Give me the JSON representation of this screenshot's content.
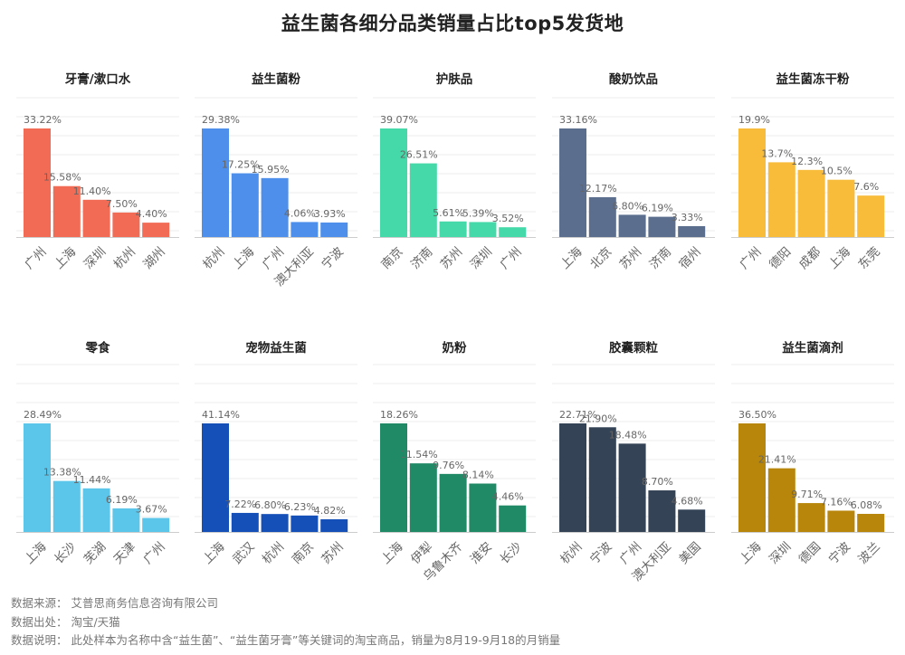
{
  "title": "益生菌各细分品类销量占比top5发货地",
  "chart_data": [
    {
      "type": "bar",
      "title": "牙膏/漱口水",
      "categories": [
        "广州",
        "上海",
        "深圳",
        "杭州",
        "湖州"
      ],
      "values": [
        33.22,
        15.58,
        11.4,
        7.5,
        4.4
      ],
      "labels": [
        "33.22%",
        "15.58%",
        "11.40%",
        "7.50%",
        "4.40%"
      ],
      "color": "#F26B55",
      "grid": true
    },
    {
      "type": "bar",
      "title": "益生菌粉",
      "categories": [
        "杭州",
        "上海",
        "广州",
        "澳大利亚",
        "宁波"
      ],
      "values": [
        29.38,
        17.25,
        15.95,
        4.06,
        3.93
      ],
      "labels": [
        "29.38%",
        "17.25%",
        "15.95%",
        "4.06%",
        "3.93%"
      ],
      "color": "#4D8FEB",
      "grid": true
    },
    {
      "type": "bar",
      "title": "护肤品",
      "categories": [
        "南京",
        "济南",
        "苏州",
        "深圳",
        "广州"
      ],
      "values": [
        39.07,
        26.51,
        5.61,
        5.39,
        3.52
      ],
      "labels": [
        "39.07%",
        "26.51%",
        "5.61%",
        "5.39%",
        "3.52%"
      ],
      "color": "#45D8A8",
      "grid": true
    },
    {
      "type": "bar",
      "title": "酸奶饮品",
      "categories": [
        "上海",
        "北京",
        "苏州",
        "济南",
        "宿州"
      ],
      "values": [
        33.16,
        12.17,
        6.8,
        6.19,
        3.33
      ],
      "labels": [
        "33.16%",
        "12.17%",
        "6.80%",
        "6.19%",
        "3.33%"
      ],
      "color": "#5B6E8E",
      "grid": true
    },
    {
      "type": "bar",
      "title": "益生菌冻干粉",
      "categories": [
        "广州",
        "德阳",
        "成都",
        "上海",
        "东莞"
      ],
      "values": [
        19.9,
        13.7,
        12.3,
        10.5,
        7.6
      ],
      "labels": [
        "19.9%",
        "13.7%",
        "12.3%",
        "10.5%",
        "7.6%"
      ],
      "color": "#F8BB3A",
      "grid": true
    },
    {
      "type": "bar",
      "title": "零食",
      "categories": [
        "上海",
        "长沙",
        "芜湖",
        "天津",
        "广州"
      ],
      "values": [
        28.49,
        13.38,
        11.44,
        6.19,
        3.67
      ],
      "labels": [
        "28.49%",
        "13.38%",
        "11.44%",
        "6.19%",
        "3.67%"
      ],
      "color": "#5BC6EA",
      "grid": true
    },
    {
      "type": "bar",
      "title": "宠物益生菌",
      "categories": [
        "上海",
        "武汉",
        "杭州",
        "南京",
        "苏州"
      ],
      "values": [
        41.14,
        7.22,
        6.8,
        6.23,
        4.82
      ],
      "labels": [
        "41.14%",
        "7.22%",
        "6.80%",
        "6.23%",
        "4.82%"
      ],
      "color": "#1550B8",
      "grid": true
    },
    {
      "type": "bar",
      "title": "奶粉",
      "categories": [
        "上海",
        "伊犁",
        "乌鲁木齐",
        "淮安",
        "长沙"
      ],
      "values": [
        18.26,
        11.54,
        9.76,
        8.14,
        4.46
      ],
      "labels": [
        "18.26%",
        "11.54%",
        "9.76%",
        "8.14%",
        "4.46%"
      ],
      "color": "#1F8A65",
      "grid": true
    },
    {
      "type": "bar",
      "title": "胶囊颗粒",
      "categories": [
        "杭州",
        "宁波",
        "广州",
        "澳大利亚",
        "美国"
      ],
      "values": [
        22.71,
        21.9,
        18.48,
        8.7,
        4.68
      ],
      "labels": [
        "22.71%",
        "21.90%",
        "18.48%",
        "8.70%",
        "4.68%"
      ],
      "color": "#344356",
      "grid": true
    },
    {
      "type": "bar",
      "title": "益生菌滴剂",
      "categories": [
        "上海",
        "深圳",
        "德国",
        "宁波",
        "波兰"
      ],
      "values": [
        36.5,
        21.41,
        9.71,
        7.16,
        6.08
      ],
      "labels": [
        "36.50%",
        "21.41%",
        "9.71%",
        "7.16%",
        "6.08%"
      ],
      "color": "#B8860B",
      "grid": true
    }
  ],
  "footnotes": {
    "source": "数据来源：  艾普思商务信息咨询有限公司",
    "origin": "数据出处：  淘宝/天猫",
    "note": "数据说明：  此处样本为名称中含“益生菌”、“益生菌牙膏”等关键词的淘宝商品，销量为8月19-9月18的月销量"
  }
}
